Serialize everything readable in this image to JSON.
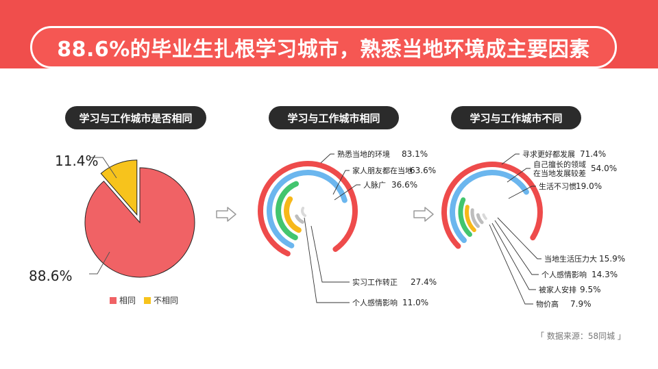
{
  "title": "88.6%的毕业生扎根学习城市，熟悉当地环境成主要因素",
  "source": "「 数据来源：58同城 」",
  "colors": {
    "band": "#f04e4c",
    "red": "#ee4b4b",
    "pie_red": "#f06265",
    "yellow": "#f7c31c",
    "blue": "#6bb6ee",
    "green": "#43c56e",
    "orange": "#f7b81a",
    "gray": "#bdbdbd",
    "light": "#d9d9d9",
    "arrow": "#9a9a9a"
  },
  "chart_data": [
    {
      "type": "pie",
      "title": "学习与工作城市是否相同",
      "categories": [
        "相同",
        "不相同"
      ],
      "values": [
        88.6,
        11.4
      ],
      "value_labels": [
        "88.6%",
        "11.4%"
      ],
      "legend": "bottom"
    },
    {
      "type": "radial-bar",
      "title": "学习与工作城市相同",
      "categories": [
        "熟悉当地的环境",
        "家人朋友都在当地",
        "人脉广",
        "实习工作转正",
        "个人感情影响"
      ],
      "values": [
        83.1,
        63.6,
        36.6,
        27.4,
        11.0
      ],
      "value_labels": [
        "83.1%",
        "63.6%",
        "36.6%",
        "27.4%",
        "11.0%"
      ]
    },
    {
      "type": "radial-bar",
      "title": "学习与工作城市不同",
      "categories": [
        "寻求更好都发展",
        "自己擅长的领域\n在当地发展较差",
        "生活不习惯",
        "当地生活压力大",
        "个人感情影响",
        "被家人安排",
        "物价高"
      ],
      "values": [
        71.4,
        54.0,
        19.0,
        15.9,
        14.3,
        9.5,
        7.9
      ],
      "value_labels": [
        "71.4%",
        "54.0%",
        "19.0%",
        "15.9%",
        "14.3%",
        "9.5%",
        "7.9%"
      ]
    }
  ]
}
